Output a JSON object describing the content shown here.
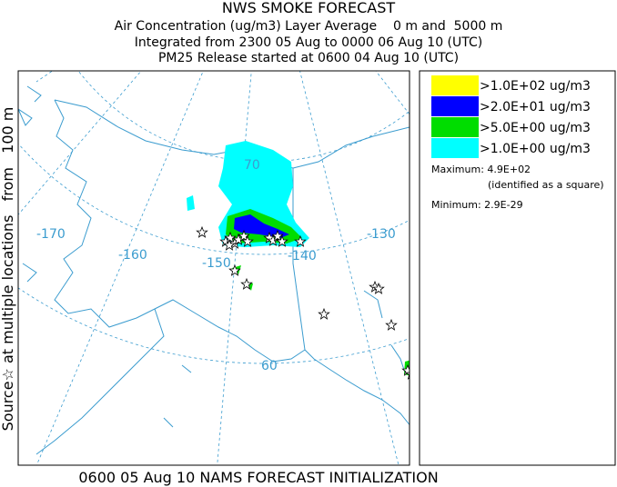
{
  "header": {
    "title": "NWS SMOKE FORECAST",
    "lines": [
      "Air Concentration (ug/m3) Layer Average    0 m and  5000 m",
      "Integrated from 2300 05 Aug to 0000 06 Aug 10 (UTC)",
      "PM25 Release started at 0600 04 Aug 10 (UTC)"
    ]
  },
  "side_label": "Source☆ at multiple locations   from   100 m",
  "footer": "0600 05 Aug 10 NAMS FORECAST INITIALIZATION",
  "legend": {
    "items": [
      {
        "label": ">1.0E+02 ug/m3",
        "color": "#ffff00"
      },
      {
        "label": ">2.0E+01 ug/m3",
        "color": "#0000ff"
      },
      {
        "label": ">5.0E+00 ug/m3",
        "color": "#00dd00"
      },
      {
        "label": ">1.0E+00 ug/m3",
        "color": "#00ffff"
      }
    ],
    "maximum": "Maximum: 4.9E+02",
    "maximum_note": "(identified as a square)",
    "minimum": "Minimum: 2.9E-29"
  },
  "map": {
    "labels": [
      "-170",
      "-160",
      "-150",
      "-140",
      "-130",
      "70",
      "60"
    ]
  }
}
